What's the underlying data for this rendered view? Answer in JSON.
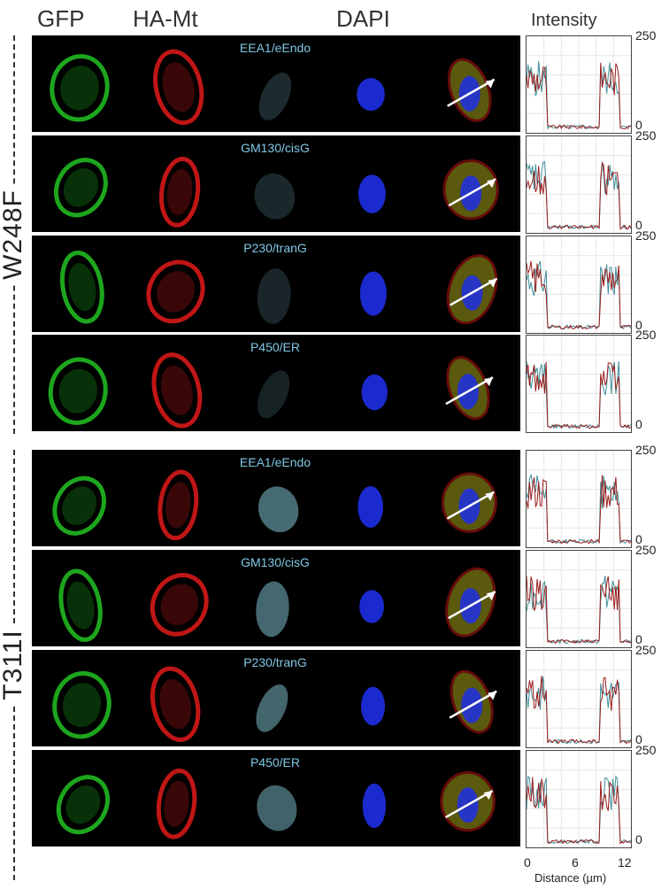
{
  "headers": {
    "gfp": "GFP",
    "ha_mt": "HA-Mt",
    "dapi": "DAPI",
    "intensity": "Intensity"
  },
  "groups": [
    {
      "label": "W248F",
      "rows": [
        {
          "marker": "EEA1/eEndo",
          "ymax": "250",
          "ymin": "0"
        },
        {
          "marker": "GM130/cisG",
          "ymax": "250",
          "ymin": "0"
        },
        {
          "marker": "P230/tranG",
          "ymax": "250",
          "ymin": "0"
        },
        {
          "marker": "P450/ER",
          "ymax": "250",
          "ymin": "0"
        }
      ]
    },
    {
      "label": "T311I",
      "rows": [
        {
          "marker": "EEA1/eEndo",
          "ymax": "250",
          "ymin": "0"
        },
        {
          "marker": "GM130/cisG",
          "ymax": "250",
          "ymin": "0"
        },
        {
          "marker": "P230/tranG",
          "ymax": "250",
          "ymin": "0"
        },
        {
          "marker": "P450/ER",
          "ymax": "250",
          "ymin": "0"
        }
      ]
    }
  ],
  "x_axis": {
    "ticks": [
      "0",
      "6",
      "12"
    ],
    "label": "Distance (µm)"
  },
  "colors": {
    "gfp": "#22c322",
    "ha_mt": "#e21a1a",
    "marker": "#8fd8e8",
    "dapi": "#1e2fe6",
    "trace_red": "#9b1c1c",
    "trace_teal": "#3f8f99"
  }
}
